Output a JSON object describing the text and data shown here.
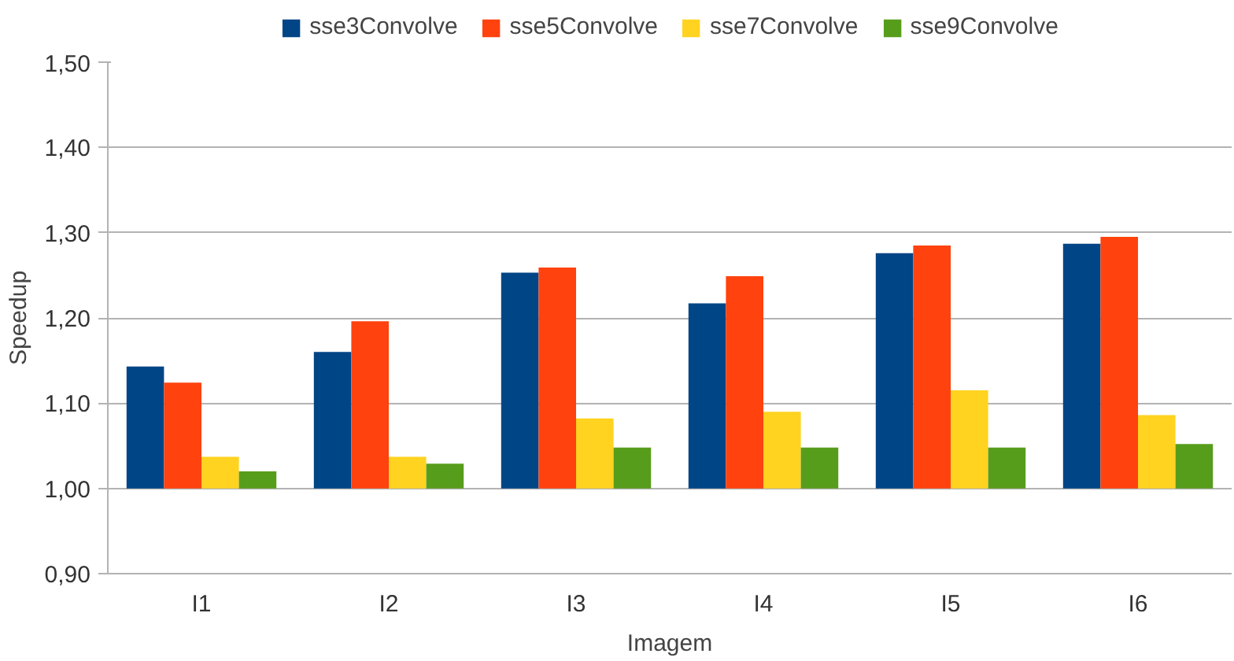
{
  "chart_data": {
    "type": "bar",
    "xlabel": "Imagem",
    "ylabel": "Speedup",
    "categories": [
      "I1",
      "I2",
      "I3",
      "I4",
      "I5",
      "I6"
    ],
    "series": [
      {
        "name": "sse3Convolve",
        "color": "#004586",
        "base": [
          1,
          1,
          1,
          1,
          1,
          1
        ],
        "values": [
          0.143,
          0.16,
          0.253,
          0.217,
          0.276,
          0.287
        ]
      },
      {
        "name": "sse5Convolve",
        "color": "#ff420e",
        "base": [
          1,
          1,
          1,
          1,
          1,
          1
        ],
        "values": [
          0.124,
          0.196,
          0.259,
          0.249,
          0.285,
          0.295
        ]
      },
      {
        "name": "sse7Convolve",
        "color": "#ffd320",
        "base": [
          1,
          1,
          1,
          1,
          1,
          1
        ],
        "values": [
          0.037,
          0.037,
          0.082,
          0.09,
          0.115,
          0.086
        ]
      },
      {
        "name": "sse9Convolve",
        "color": "#579d1c",
        "base": [
          1,
          1,
          1,
          1,
          1,
          1
        ],
        "values": [
          0.02,
          0.029,
          0.048,
          0.048,
          0.048,
          0.052
        ]
      }
    ],
    "ylim": [
      0.9,
      1.5
    ],
    "yticks": [
      {
        "value": 0.9,
        "label": "0,90"
      },
      {
        "value": 1.0,
        "label": "1,00"
      },
      {
        "value": 1.1,
        "label": "1,10"
      },
      {
        "value": 1.2,
        "label": "1,20"
      },
      {
        "value": 1.3,
        "label": "1,30"
      },
      {
        "value": 1.4,
        "label": "1,40"
      },
      {
        "value": 1.5,
        "label": "1,50"
      }
    ],
    "grid": "y",
    "legend": "top"
  }
}
